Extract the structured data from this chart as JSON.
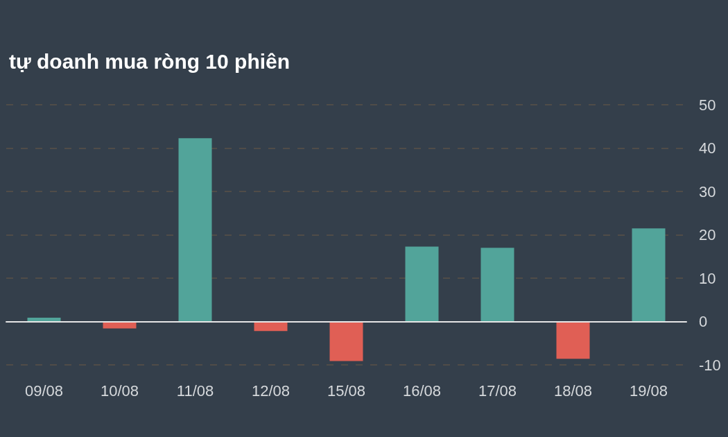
{
  "chart_data": {
    "type": "bar",
    "title": "tự doanh mua ròng 10 phiên",
    "categories": [
      "09/08",
      "10/08",
      "11/08",
      "12/08",
      "15/08",
      "16/08",
      "17/08",
      "18/08",
      "19/08"
    ],
    "values": [
      0.9,
      -1.6,
      42.3,
      -2.2,
      -9.1,
      17.3,
      17.0,
      -8.6,
      21.5
    ],
    "colors": [
      "#52a49a",
      "#e05f55",
      "#52a49a",
      "#e05f55",
      "#e05f55",
      "#52a49a",
      "#52a49a",
      "#e05f55",
      "#52a49a"
    ],
    "ylim": [
      -10,
      50
    ],
    "yticks": [
      -10,
      0,
      10,
      20,
      30,
      40,
      50
    ],
    "grid": "y"
  }
}
